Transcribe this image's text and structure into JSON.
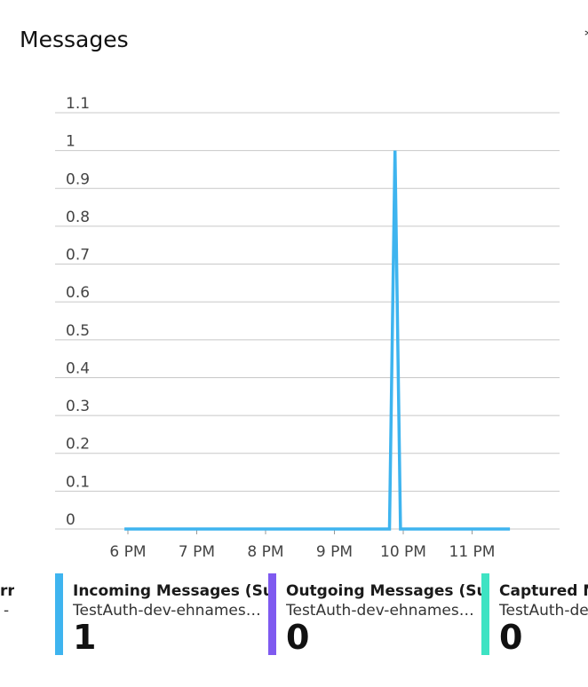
{
  "page": {
    "title": "Messages",
    "clipped_glyph": "*"
  },
  "chart_data": {
    "type": "line",
    "title": "Messages",
    "xlabel": "",
    "ylabel": "",
    "ylim": [
      0,
      1.1
    ],
    "y_ticks": [
      "1.1",
      "1",
      "0.9",
      "0.8",
      "0.7",
      "0.6",
      "0.5",
      "0.4",
      "0.3",
      "0.2",
      "0.1",
      "0"
    ],
    "x_ticks": [
      "6 PM",
      "7 PM",
      "8 PM",
      "9 PM",
      "10 PM",
      "11 PM"
    ],
    "grid": true,
    "legend_position": "bottom",
    "series": [
      {
        "name": "Incoming Messages (Sum)",
        "color": "#3eb4ef",
        "x_hours": [
          17.95,
          21.8,
          21.88,
          21.96,
          23.55
        ],
        "values": [
          0,
          0,
          1,
          0,
          0
        ]
      }
    ]
  },
  "legend": [
    {
      "title": "Incoming Messages (Sum)",
      "subtitle": "TestAuth-dev-ehnamespace",
      "value": "1",
      "color": "#3eb4ef"
    },
    {
      "title": "Outgoing Messages (Sum)",
      "subtitle": "TestAuth-dev-ehnamespace",
      "value": "0",
      "color": "#7f5af0"
    },
    {
      "title": "Captured Messages (Sum)",
      "subtitle": "TestAuth-dev-ehnamespace",
      "value": "0",
      "color": "#3ee3c3"
    }
  ],
  "clipped_left_card": {
    "title": "rr",
    "subtitle": "-",
    "color": "#3eb4ef"
  }
}
